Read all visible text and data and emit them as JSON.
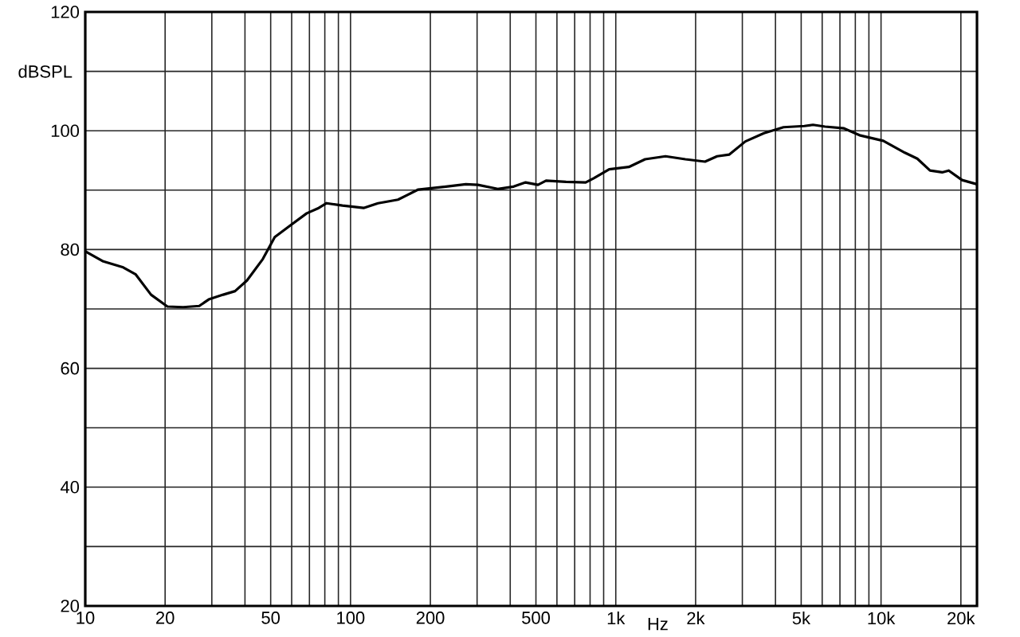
{
  "chart_data": {
    "type": "line",
    "xlabel": "Hz",
    "ylabel": "dBSPL",
    "log": "x",
    "grid": true,
    "xlim": [
      10,
      23000
    ],
    "ylim": [
      20,
      120
    ],
    "xticks": [
      10,
      20,
      {
        "value": 30,
        "label": null
      },
      {
        "value": 40,
        "label": null
      },
      50,
      {
        "value": 60,
        "label": null
      },
      {
        "value": 70,
        "label": null
      },
      {
        "value": 80,
        "label": null
      },
      {
        "value": 90,
        "label": null
      },
      100,
      200,
      {
        "value": 300,
        "label": null
      },
      {
        "value": 400,
        "label": null
      },
      500,
      {
        "value": 600,
        "label": null
      },
      {
        "value": 700,
        "label": null
      },
      {
        "value": 800,
        "label": null
      },
      {
        "value": 900,
        "label": null
      },
      {
        "value": 1000,
        "label": "1k"
      },
      {
        "value": 2000,
        "label": "2k"
      },
      {
        "value": 3000,
        "label": null
      },
      {
        "value": 4000,
        "label": null
      },
      {
        "value": 5000,
        "label": "5k"
      },
      {
        "value": 6000,
        "label": null
      },
      {
        "value": 7000,
        "label": null
      },
      {
        "value": 8000,
        "label": null
      },
      {
        "value": 9000,
        "label": null
      },
      {
        "value": 10000,
        "label": "10k"
      },
      {
        "value": 20000,
        "label": "20k"
      }
    ],
    "yticks": [
      20,
      {
        "value": 30,
        "label": null
      },
      40,
      {
        "value": 50,
        "label": null
      },
      60,
      {
        "value": 70,
        "label": null
      },
      80,
      {
        "value": 90,
        "label": null
      },
      100,
      {
        "value": 110,
        "label": null
      },
      120
    ],
    "x": [
      10,
      11.7,
      13.9,
      15.5,
      17.7,
      20.4,
      23.4,
      26.9,
      29.2,
      33.1,
      36.7,
      40.7,
      46.7,
      51.8,
      59.5,
      68.4,
      75.9,
      81.2,
      93.2,
      112,
      127,
      151,
      180,
      229,
      272,
      302,
      359,
      412,
      457,
      509,
      546,
      649,
      770,
      826,
      944,
      1120,
      1290,
      1540,
      1830,
      2170,
      2410,
      2680,
      3080,
      3620,
      4290,
      5140,
      5540,
      6150,
      7250,
      8360,
      10200,
      12300,
      13700,
      15300,
      17000,
      18000,
      20200,
      23000
    ],
    "series": [
      {
        "color": "#000000",
        "values": [
          79.7,
          78.0,
          77.0,
          75.8,
          72.4,
          70.4,
          70.3,
          70.5,
          71.6,
          72.4,
          73.0,
          74.8,
          78.4,
          82.1,
          84.1,
          86.1,
          87.0,
          87.8,
          87.4,
          87.0,
          87.8,
          88.4,
          90.1,
          90.6,
          91.0,
          90.9,
          90.2,
          90.6,
          91.3,
          90.9,
          91.6,
          91.4,
          91.3,
          92.0,
          93.5,
          93.9,
          95.2,
          95.7,
          95.2,
          94.8,
          95.7,
          96.0,
          98.2,
          99.6,
          100.6,
          100.8,
          101.0,
          100.7,
          100.4,
          99.2,
          98.3,
          96.3,
          95.3,
          93.3,
          93.0,
          93.3,
          91.7,
          91.0
        ]
      }
    ]
  }
}
